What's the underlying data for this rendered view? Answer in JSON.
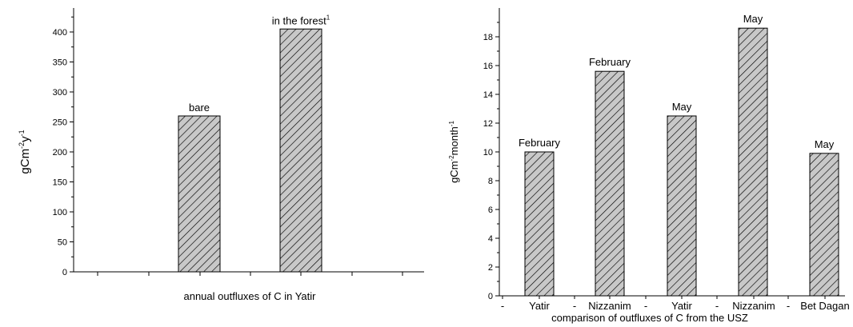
{
  "chart_data": [
    {
      "type": "bar",
      "xlabel": "annual outfluxes of C in Yatir",
      "ylabel_base": "gCm",
      "ylabel_sup1": "-2",
      "ylabel_mid": "y",
      "ylabel_sup2": "-1",
      "ylim": [
        0,
        440
      ],
      "ytick_step": 50,
      "grid": false,
      "bars": [
        {
          "value": 260,
          "label": "bare",
          "label_sup": ""
        },
        {
          "value": 405,
          "label": "in the forest",
          "label_sup": "1"
        }
      ],
      "x_tick_labels": []
    },
    {
      "type": "bar",
      "xlabel": "comparison of outfluxes of C from the USZ",
      "ylabel_base": "gCm",
      "ylabel_sup1": "-2",
      "ylabel_mid": "month",
      "ylabel_sup2": "-1",
      "ylim": [
        0,
        20
      ],
      "ytick_step": 2,
      "grid": false,
      "bars": [
        {
          "value": 10.0,
          "label": "February"
        },
        {
          "value": 15.6,
          "label": "February"
        },
        {
          "value": 12.5,
          "label": "May"
        },
        {
          "value": 18.6,
          "label": "May"
        },
        {
          "value": 9.9,
          "label": "May"
        }
      ],
      "x_tick_labels": [
        "-",
        "Yatir",
        "-",
        "Nizzanim",
        "-",
        "Yatir",
        "-",
        "Nizzanim",
        "-",
        "Bet Dagan"
      ]
    }
  ]
}
